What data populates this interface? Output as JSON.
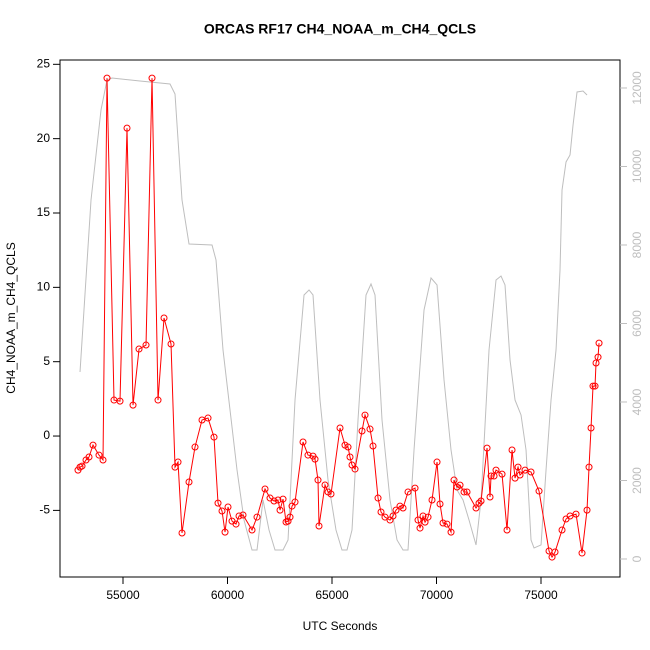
{
  "chart_data": {
    "type": "line",
    "title": "ORCAS RF17 CH4_NOAA_m_CH4_QCLS",
    "x_label": "UTC Seconds",
    "y_label": "CH4_NOAA_m_CH4_QCLS",
    "xlim": [
      51985,
      78780
    ],
    "xticks": [
      55000,
      60000,
      65000,
      70000,
      75000
    ],
    "ylim": [
      -9.48,
      25.29
    ],
    "yticks": [
      -5,
      0,
      5,
      10,
      15,
      20,
      25
    ],
    "y2lim": [
      -459,
      12713
    ],
    "y2ticks": [
      0,
      2000,
      4000,
      6000,
      8000,
      10000,
      12000
    ],
    "series": [
      {
        "color": "#bebebe",
        "axis": "y2",
        "markers": false,
        "x": [
          52943,
          53469,
          53947,
          54234,
          54474,
          55813,
          57249,
          57488,
          57823,
          58158,
          59259,
          59450,
          59785,
          60120,
          60455,
          60790,
          61173,
          61412,
          61699,
          61986,
          62273,
          62656,
          62896,
          63230,
          63661,
          63900,
          64091,
          64426,
          64809,
          65191,
          65478,
          65718,
          65957,
          66244,
          66627,
          66866,
          67058,
          67393,
          67776,
          68111,
          68398,
          68637,
          68924,
          69403,
          69738,
          70025,
          70360,
          70695,
          70982,
          71269,
          71556,
          71891,
          72131,
          72513,
          72848,
          73087,
          73278,
          73518,
          73757,
          74044,
          74284,
          74523,
          74667,
          75002,
          75241,
          75480,
          75719,
          75910,
          76006,
          76198,
          76389,
          76533,
          76724,
          77011,
          77202
        ],
        "values": [
          4764,
          9146,
          11439,
          12203,
          12255,
          12178,
          12102,
          11847,
          9146,
          8025,
          8000,
          7618,
          5325,
          3796,
          2268,
          994,
          229,
          229,
          1503,
          739,
          229,
          229,
          484,
          4051,
          6726,
          6854,
          6726,
          4051,
          2013,
          739,
          229,
          229,
          739,
          3541,
          6726,
          7006,
          6726,
          3541,
          1503,
          484,
          229,
          229,
          2777,
          6344,
          7159,
          6981,
          4561,
          2777,
          1758,
          1503,
          994,
          357,
          1503,
          5325,
          7108,
          7210,
          6981,
          5070,
          4051,
          3669,
          2777,
          484,
          280,
          357,
          2268,
          4051,
          5325,
          7363,
          9401,
          10115,
          10293,
          11057,
          11898,
          11923,
          11822
        ]
      },
      {
        "color": "#ff0000",
        "axis": "y",
        "markers": true,
        "x": [
          52847,
          52943,
          53038,
          53230,
          53373,
          53565,
          53852,
          54043,
          54234,
          54569,
          54856,
          55191,
          55479,
          55766,
          56101,
          56388,
          56675,
          56962,
          57297,
          57488,
          57632,
          57823,
          58158,
          58445,
          58780,
          59067,
          59354,
          59546,
          59737,
          59881,
          60024,
          60216,
          60407,
          60551,
          60742,
          61173,
          61412,
          61795,
          62034,
          62226,
          62417,
          62513,
          62656,
          62800,
          62896,
          62991,
          63087,
          63230,
          63613,
          63852,
          64091,
          64187,
          64330,
          64378,
          64665,
          64809,
          64952,
          65383,
          65622,
          65766,
          65861,
          65957,
          66101,
          66436,
          66579,
          66818,
          66962,
          67202,
          67345,
          67536,
          67776,
          67919,
          68063,
          68254,
          68398,
          68637,
          68972,
          69116,
          69211,
          69355,
          69451,
          69594,
          69785,
          70025,
          70168,
          70312,
          70503,
          70695,
          70838,
          70982,
          71125,
          71317,
          71460,
          71891,
          72035,
          72131,
          72418,
          72561,
          72609,
          72752,
          72848,
          73135,
          73374,
          73614,
          73757,
          73901,
          73996,
          74236,
          74523,
          74906,
          75384,
          75528,
          75671,
          76006,
          76198,
          76389,
          76676,
          76963,
          77202,
          77298,
          77394,
          77489,
          77585,
          77633,
          77729,
          77777
        ],
        "values": [
          -2.29,
          -2.09,
          -2.02,
          -1.61,
          -1.41,
          -0.61,
          -1.28,
          -1.61,
          24.07,
          2.42,
          2.35,
          20.71,
          2.08,
          5.85,
          6.12,
          24.07,
          2.42,
          7.94,
          6.19,
          -2.09,
          -1.75,
          -6.52,
          -3.09,
          -0.74,
          1.08,
          1.21,
          -0.07,
          -4.51,
          -5.04,
          -6.46,
          -4.77,
          -5.72,
          -5.92,
          -5.38,
          -5.31,
          -6.32,
          -5.45,
          -3.56,
          -4.17,
          -4.37,
          -4.3,
          -4.98,
          -4.24,
          -5.78,
          -5.72,
          -5.45,
          -4.71,
          -4.44,
          -0.4,
          -1.28,
          -1.35,
          -1.55,
          -2.96,
          -6.05,
          -3.29,
          -3.76,
          -3.9,
          0.54,
          -0.61,
          -0.74,
          -1.41,
          -1.95,
          -2.22,
          0.34,
          1.41,
          0.47,
          -0.67,
          -4.17,
          -5.11,
          -5.45,
          -5.65,
          -5.38,
          -4.98,
          -4.71,
          -4.84,
          -3.76,
          -3.5,
          -5.65,
          -6.19,
          -5.38,
          -5.79,
          -5.45,
          -4.3,
          -1.75,
          -4.57,
          -5.85,
          -5.92,
          -6.46,
          -2.96,
          -3.43,
          -3.3,
          -3.76,
          -3.76,
          -4.84,
          -4.51,
          -4.37,
          -0.81,
          -4.1,
          -2.69,
          -2.69,
          -2.29,
          -2.56,
          -6.32,
          -0.94,
          -2.83,
          -2.09,
          -2.62,
          -2.29,
          -2.42,
          -3.7,
          -7.73,
          -8.14,
          -7.8,
          -6.32,
          -5.58,
          -5.38,
          -5.25,
          -7.87,
          -4.98,
          -2.09,
          0.54,
          3.36,
          3.36,
          4.91,
          5.31,
          6.25
        ]
      }
    ]
  }
}
